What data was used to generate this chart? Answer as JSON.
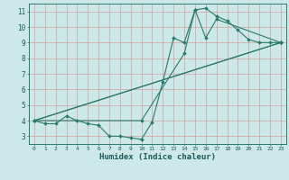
{
  "title": "",
  "xlabel": "Humidex (Indice chaleur)",
  "bg_color": "#cce8e8",
  "grid_color": "#d4a0a0",
  "line_color": "#2a7a6a",
  "xlim": [
    -0.5,
    23.5
  ],
  "ylim": [
    2.5,
    11.5
  ],
  "xticks": [
    0,
    1,
    2,
    3,
    4,
    5,
    6,
    7,
    8,
    9,
    10,
    11,
    12,
    13,
    14,
    15,
    16,
    17,
    18,
    19,
    20,
    21,
    22,
    23
  ],
  "yticks": [
    3,
    4,
    5,
    6,
    7,
    8,
    9,
    10,
    11
  ],
  "lines": [
    {
      "x": [
        0,
        1,
        2,
        3,
        4,
        5,
        6,
        7,
        8,
        9,
        10,
        11,
        12,
        13,
        14,
        15,
        16,
        17,
        18,
        19,
        20,
        21,
        22,
        23
      ],
      "y": [
        4.0,
        3.8,
        3.8,
        4.3,
        4.0,
        3.8,
        3.7,
        3.0,
        3.0,
        2.9,
        2.8,
        3.9,
        6.5,
        9.3,
        9.0,
        11.1,
        11.2,
        10.7,
        10.4,
        9.8,
        9.2,
        9.0,
        9.0,
        9.0
      ]
    },
    {
      "x": [
        0,
        23
      ],
      "y": [
        4.0,
        9.0
      ]
    },
    {
      "x": [
        0,
        23
      ],
      "y": [
        4.0,
        9.0
      ]
    },
    {
      "x": [
        0,
        10,
        14,
        15,
        16,
        17,
        23
      ],
      "y": [
        4.0,
        4.0,
        8.3,
        11.1,
        9.3,
        10.5,
        9.0
      ]
    }
  ]
}
